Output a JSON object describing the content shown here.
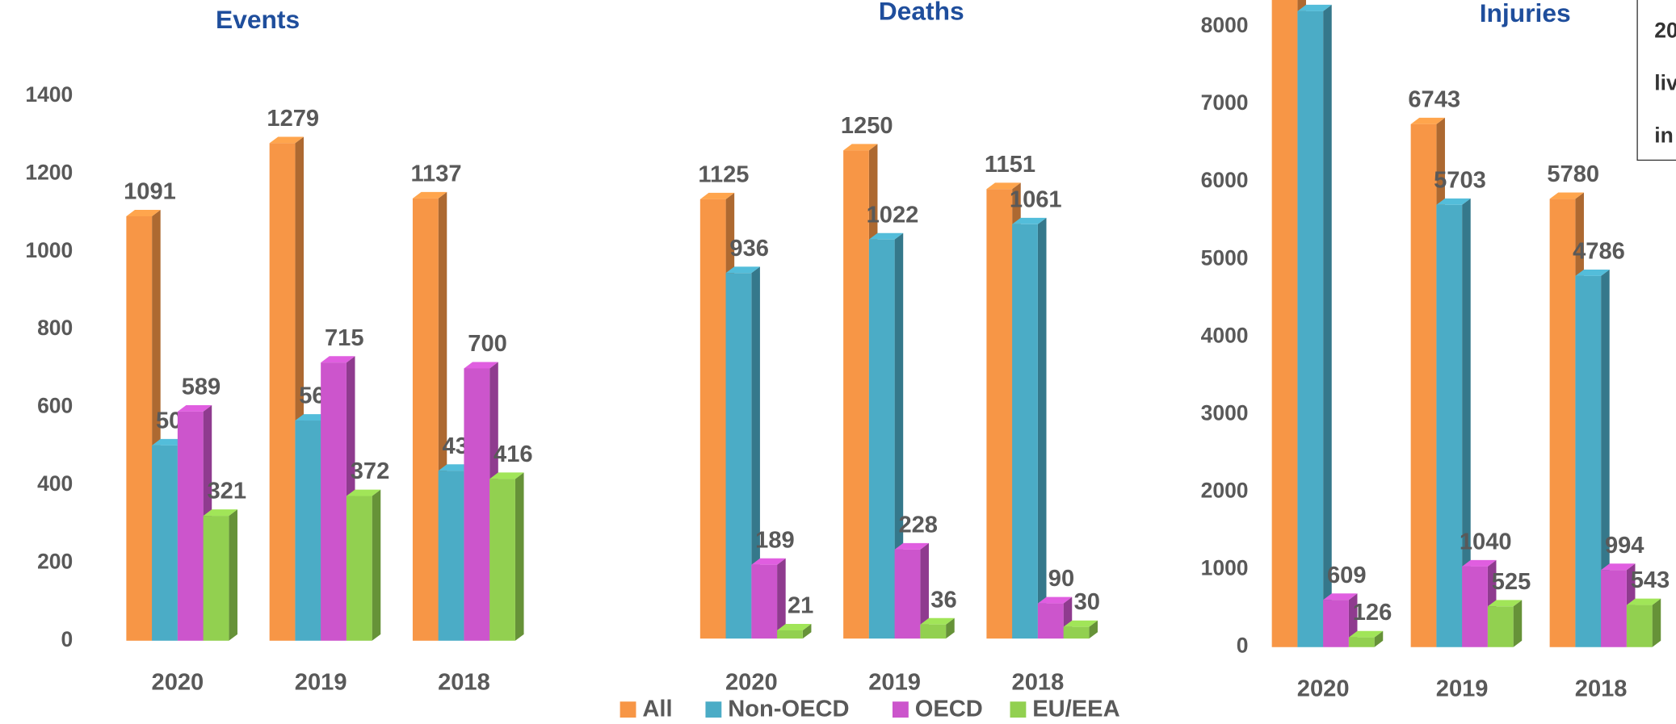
{
  "chart_data": [
    {
      "type": "bar",
      "title": "Events",
      "categories": [
        "2020",
        "2019",
        "2018"
      ],
      "series": [
        {
          "name": "All",
          "color": "#f79646",
          "values": [
            1091,
            1279,
            1137
          ]
        },
        {
          "name": "Non-OECD",
          "color": "#4bacc6",
          "values": [
            502,
            566,
            437
          ]
        },
        {
          "name": "OECD",
          "color": "#cc55cc",
          "values": [
            589,
            715,
            700
          ]
        },
        {
          "name": "EU/EEA",
          "color": "#92d050",
          "values": [
            321,
            372,
            416
          ]
        }
      ],
      "ylim": [
        0,
        1400
      ],
      "yticks": [
        0,
        200,
        400,
        600,
        800,
        1000,
        1200,
        1400
      ]
    },
    {
      "type": "bar",
      "title": "Deaths",
      "categories": [
        "2020",
        "2019",
        "2018"
      ],
      "series": [
        {
          "name": "All",
          "color": "#f79646",
          "values": [
            1125,
            1250,
            1151
          ]
        },
        {
          "name": "Non-OECD",
          "color": "#4bacc6",
          "values": [
            936,
            1022,
            1061
          ]
        },
        {
          "name": "OECD",
          "color": "#cc55cc",
          "values": [
            189,
            228,
            90
          ]
        },
        {
          "name": "EU/EEA",
          "color": "#92d050",
          "values": [
            21,
            36,
            30
          ]
        }
      ],
      "ylim": [
        0,
        1400
      ]
    },
    {
      "type": "bar",
      "title": "Injuries",
      "categories": [
        "2020",
        "2019",
        "2018"
      ],
      "series": [
        {
          "name": "All",
          "color": "#f79646",
          "values": [
            8500,
            6743,
            5780
          ]
        },
        {
          "name": "Non-OECD",
          "color": "#4bacc6",
          "values": [
            8200,
            5703,
            4786
          ]
        },
        {
          "name": "OECD",
          "color": "#cc55cc",
          "values": [
            609,
            1040,
            994
          ]
        },
        {
          "name": "EU/EEA",
          "color": "#92d050",
          "values": [
            126,
            525,
            543
          ]
        }
      ],
      "value_labels": [
        [
          null,
          "6743",
          "5780"
        ],
        [
          null,
          "5703",
          "4786"
        ],
        [
          "609",
          "1040",
          "994"
        ],
        [
          "126",
          "525",
          "543"
        ]
      ],
      "ylim": [
        0,
        8000
      ],
      "yticks": [
        0,
        1000,
        2000,
        3000,
        4000,
        5000,
        6000,
        7000,
        8000
      ],
      "annotations": [
        "20",
        "liv",
        "in"
      ]
    }
  ]
}
